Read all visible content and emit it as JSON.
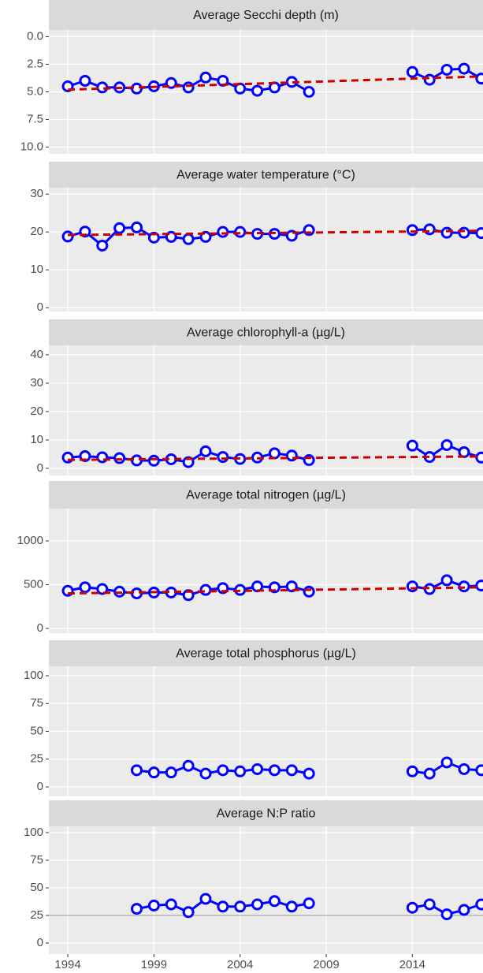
{
  "chart_data": [
    {
      "type": "line",
      "title": "Average Secchi depth (m)",
      "reverse_y": true,
      "x": [
        1994,
        1995,
        1996,
        1997,
        1998,
        1999,
        2000,
        2001,
        2002,
        2003,
        2004,
        2005,
        2006,
        2007,
        2008,
        2009,
        2010,
        2011,
        2012,
        2013,
        2014,
        2015,
        2016,
        2017,
        2018
      ],
      "xlim": [
        1992.9,
        2018.1
      ],
      "ylim": [
        -0.6,
        10.6
      ],
      "yticks": [
        {
          "value": 0,
          "label": "0.0"
        },
        {
          "value": 2.5,
          "label": "2.5"
        },
        {
          "value": 5,
          "label": "5.0"
        },
        {
          "value": 7.5,
          "label": "7.5"
        },
        {
          "value": 10,
          "label": "10.0"
        }
      ],
      "series": [
        {
          "color": "#0000ff",
          "values": [
            4.5,
            4.0,
            4.6,
            4.6,
            4.7,
            4.5,
            4.2,
            4.6,
            3.7,
            4.0,
            4.7,
            4.9,
            4.6,
            4.1,
            5.0,
            null,
            null,
            null,
            null,
            null,
            3.2,
            3.9,
            3.0,
            2.9,
            3.8
          ]
        },
        {
          "color": "#cc0000",
          "dashed": true,
          "x": [
            1994,
            2018
          ],
          "values": [
            4.8,
            3.6
          ]
        }
      ]
    },
    {
      "type": "line",
      "title": "Average water temperature (°C)",
      "x": [
        1994,
        1995,
        1996,
        1997,
        1998,
        1999,
        2000,
        2001,
        2002,
        2003,
        2004,
        2005,
        2006,
        2007,
        2008,
        2009,
        2010,
        2011,
        2012,
        2013,
        2014,
        2015,
        2016,
        2017,
        2018
      ],
      "xlim": [
        1992.9,
        2018.1
      ],
      "ylim": [
        -1.0,
        31.7
      ],
      "yticks": [
        0,
        10,
        20,
        30
      ],
      "series": [
        {
          "color": "#0000ff",
          "values": [
            18.8,
            20.1,
            16.4,
            21.0,
            21.2,
            18.5,
            18.7,
            18.1,
            18.7,
            20.0,
            20.0,
            19.5,
            19.5,
            19.0,
            20.5,
            null,
            null,
            null,
            null,
            null,
            20.5,
            20.7,
            19.8,
            19.8,
            19.7
          ]
        },
        {
          "color": "#cc0000",
          "dashed": true,
          "x": [
            1994,
            2018
          ],
          "values": [
            19.2,
            20.3
          ]
        }
      ]
    },
    {
      "type": "line",
      "title": "Average chlorophyll-a (µg/L)",
      "x": [
        1994,
        1995,
        1996,
        1997,
        1998,
        1999,
        2000,
        2001,
        2002,
        2003,
        2004,
        2005,
        2006,
        2007,
        2008,
        2009,
        2010,
        2011,
        2012,
        2013,
        2014,
        2015,
        2016,
        2017,
        2018
      ],
      "xlim": [
        1992.9,
        2018.1
      ],
      "ylim": [
        -2.5,
        43.3
      ],
      "yticks": [
        0,
        10,
        20,
        30,
        40
      ],
      "series": [
        {
          "color": "#0000ff",
          "values": [
            3.8,
            4.3,
            3.9,
            3.6,
            2.8,
            2.7,
            3.2,
            2.2,
            6.0,
            4.0,
            3.3,
            3.8,
            5.3,
            4.5,
            2.9,
            null,
            null,
            null,
            null,
            null,
            8.0,
            4.0,
            8.2,
            5.7,
            3.8
          ]
        },
        {
          "color": "#cc0000",
          "dashed": true,
          "x": [
            1994,
            2018
          ],
          "values": [
            3.0,
            4.2
          ]
        }
      ]
    },
    {
      "type": "line",
      "title": "Average total nitrogen (µg/L)",
      "x": [
        1994,
        1995,
        1996,
        1997,
        1998,
        1999,
        2000,
        2001,
        2002,
        2003,
        2004,
        2005,
        2006,
        2007,
        2008,
        2009,
        2010,
        2011,
        2012,
        2013,
        2014,
        2015,
        2016,
        2017,
        2018
      ],
      "xlim": [
        1992.9,
        2018.1
      ],
      "ylim": [
        -54,
        1369
      ],
      "yticks": [
        0,
        500,
        1000
      ],
      "series": [
        {
          "color": "#0000ff",
          "values": [
            430,
            470,
            450,
            420,
            400,
            410,
            410,
            380,
            440,
            460,
            440,
            480,
            470,
            480,
            420,
            null,
            null,
            null,
            null,
            null,
            480,
            450,
            550,
            480,
            490
          ]
        },
        {
          "color": "#cc0000",
          "dashed": true,
          "x": [
            1994,
            2018
          ],
          "values": [
            400,
            470
          ]
        }
      ]
    },
    {
      "type": "line",
      "title": "Average total phosphorus (µg/L)",
      "x": [
        1994,
        1995,
        1996,
        1997,
        1998,
        1999,
        2000,
        2001,
        2002,
        2003,
        2004,
        2005,
        2006,
        2007,
        2008,
        2009,
        2010,
        2011,
        2012,
        2013,
        2014,
        2015,
        2016,
        2017,
        2018
      ],
      "xlim": [
        1992.9,
        2018.1
      ],
      "ylim": [
        -8.5,
        108.5
      ],
      "yticks": [
        0,
        25,
        50,
        75,
        100
      ],
      "series": [
        {
          "color": "#0000ff",
          "values": [
            null,
            null,
            null,
            null,
            15,
            13,
            13,
            19,
            12,
            15,
            14,
            16,
            15,
            15,
            12,
            null,
            null,
            null,
            null,
            null,
            14,
            12,
            22,
            16,
            15
          ]
        }
      ]
    },
    {
      "type": "line",
      "title": "Average N:P ratio",
      "hline": 25,
      "x": [
        1994,
        1995,
        1996,
        1997,
        1998,
        1999,
        2000,
        2001,
        2002,
        2003,
        2004,
        2005,
        2006,
        2007,
        2008,
        2009,
        2010,
        2011,
        2012,
        2013,
        2014,
        2015,
        2016,
        2017,
        2018
      ],
      "xlim": [
        1992.9,
        2018.1
      ],
      "ylim": [
        -10,
        105.7
      ],
      "yticks": [
        0,
        25,
        50,
        75,
        100
      ],
      "xticks": [
        1994,
        1999,
        2004,
        2009,
        2014
      ],
      "series": [
        {
          "color": "#0000ff",
          "values": [
            null,
            null,
            null,
            null,
            31,
            34,
            35,
            28,
            40,
            33,
            33,
            35,
            38,
            33,
            36,
            null,
            null,
            null,
            null,
            null,
            32,
            35,
            26,
            30,
            35
          ]
        }
      ]
    }
  ]
}
